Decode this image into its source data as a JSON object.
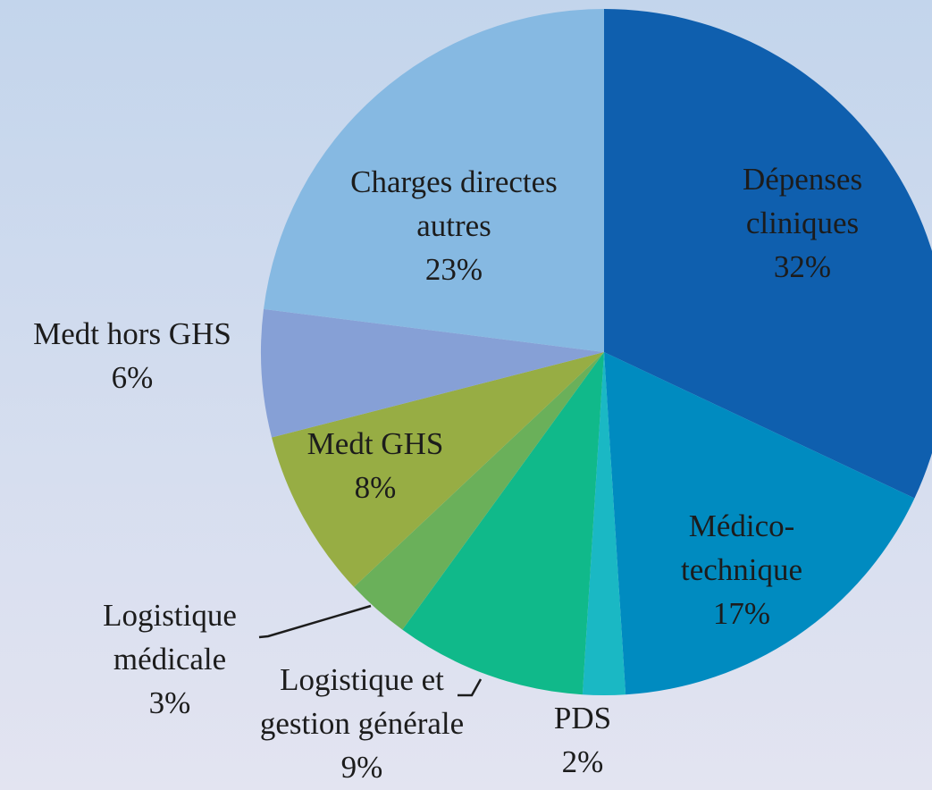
{
  "chart_data": {
    "type": "pie",
    "categories": [
      "Dépenses cliniques",
      "Médico-technique",
      "PDS",
      "Logistique et gestion générale",
      "Logistique médicale",
      "Medt GHS",
      "Medt hors GHS",
      "Charges directes autres"
    ],
    "values": [
      32,
      17,
      2,
      9,
      3,
      8,
      6,
      23
    ],
    "value_labels": [
      "32%",
      "17%",
      "2%",
      "9%",
      "3%",
      "8%",
      "6%",
      "23%"
    ],
    "colors": [
      "#0f5fae",
      "#008bc0",
      "#1ab8c4",
      "#10b98a",
      "#6ab05a",
      "#97ad44",
      "#86a0d6",
      "#86b9e2"
    ]
  }
}
